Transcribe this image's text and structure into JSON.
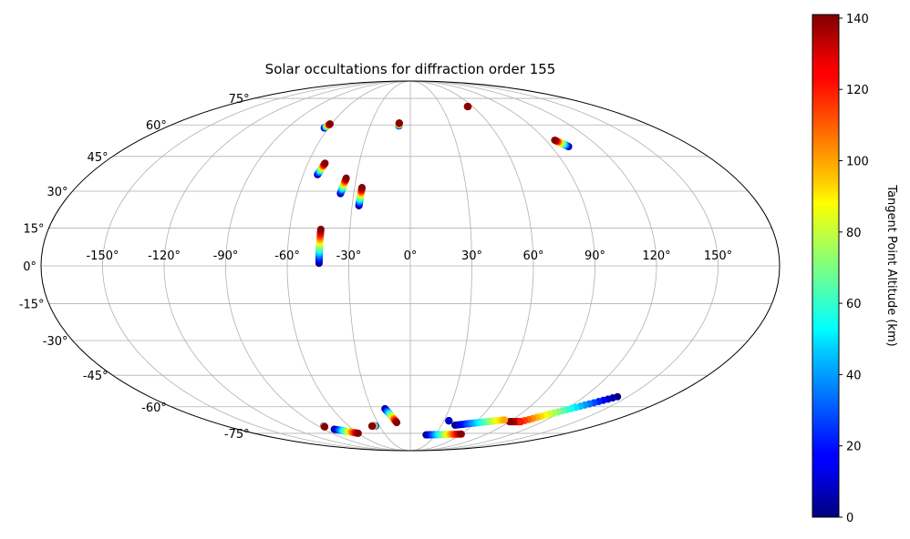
{
  "chart_data": {
    "type": "scatter",
    "projection": "mollweide",
    "title": "Solar occultations for diffraction order 155",
    "xlabel": "",
    "ylabel": "",
    "grid": true,
    "xlim": [
      -180,
      180
    ],
    "ylim": [
      -90,
      90
    ],
    "lon_ticks": [
      -150,
      -120,
      -90,
      -60,
      -30,
      0,
      30,
      60,
      90,
      120,
      150
    ],
    "lon_tick_labels": [
      "-150°",
      "-120°",
      "-90°",
      "-60°",
      "-30°",
      "0°",
      "30°",
      "60°",
      "90°",
      "120°",
      "150°"
    ],
    "lat_ticks": [
      75,
      60,
      45,
      30,
      15,
      0,
      -15,
      -30,
      -45,
      -60,
      -75
    ],
    "lat_tick_labels": [
      "75°",
      "60°",
      "45°",
      "30°",
      "15°",
      "0°",
      "-15°",
      "-30°",
      "-45°",
      "-60°",
      "-75°"
    ],
    "colorbar": {
      "label": "Tangent Point Altitude (km)",
      "colormap": "jet",
      "range": [
        0,
        141
      ],
      "ticks": [
        0,
        20,
        40,
        60,
        80,
        100,
        120,
        140
      ],
      "tick_labels": [
        "0",
        "20",
        "40",
        "60",
        "80",
        "100",
        "120",
        "140"
      ]
    },
    "tracks": [
      {
        "lon0": -44.5,
        "lat0": 1.0,
        "alt0": 0,
        "lon1": -44.5,
        "lat1": 14.5,
        "alt1": 140
      },
      {
        "lon0": -26.5,
        "lat0": 24.0,
        "alt0": 0,
        "lon1": -26.0,
        "lat1": 31.5,
        "alt1": 140
      },
      {
        "lon0": -37.0,
        "lat0": 29.0,
        "alt0": 0,
        "lon1": -35.5,
        "lat1": 35.5,
        "alt1": 140
      },
      {
        "lon0": -52.0,
        "lat0": 37.0,
        "alt0": 0,
        "lon1": -50.0,
        "lat1": 42.0,
        "alt1": 140
      },
      {
        "lon0": -63.0,
        "lat0": 58.5,
        "alt0": 0,
        "lon1": -61.0,
        "lat1": 60.5,
        "alt1": 140
      },
      {
        "lon0": -8.5,
        "lat0": 59.5,
        "alt0": 0,
        "lon1": -8.5,
        "lat1": 61.0,
        "alt1": 140
      },
      {
        "lon0": 55.5,
        "lat0": 70.0,
        "alt0": 120,
        "lon1": 55.0,
        "lat1": 70.0,
        "alt1": 140
      },
      {
        "lon0": 101.0,
        "lat0": 49.5,
        "alt0": 0,
        "lon1": 96.0,
        "lat1": 52.5,
        "alt1": 140
      },
      {
        "lon0": -19.5,
        "lat0": -61.0,
        "alt0": 0,
        "lon1": -12.5,
        "lat1": -68.5,
        "alt1": 140
      },
      {
        "lon0": -84.5,
        "lat0": -70.5,
        "alt0": 0,
        "lon1": -85.0,
        "lat1": -71.0,
        "alt1": 140
      },
      {
        "lon0": -79.5,
        "lat0": -72.5,
        "alt0": 0,
        "lon1": -60.0,
        "lat1": -75.0,
        "alt1": 140
      },
      {
        "lon0": -34.0,
        "lat0": -70.5,
        "alt0": 0,
        "lon1": -37.5,
        "lat1": -70.5,
        "alt1": 140
      },
      {
        "lon0": 19.0,
        "lat0": -76.0,
        "alt0": 0,
        "lon1": 60.0,
        "lat1": -75.5,
        "alt1": 140
      },
      {
        "lon0": 100.0,
        "lat0": -68.0,
        "alt0": 120,
        "lon1": 90.0,
        "lat1": -68.0,
        "alt1": 140
      },
      {
        "lon0": 143.0,
        "lat0": -55.0,
        "alt0": 0,
        "lon1": 100.0,
        "lat1": -68.0,
        "alt1": 120
      },
      {
        "lon0": 34.5,
        "lat0": -67.5,
        "alt0": 0,
        "lon1": 34.5,
        "lat1": -67.5,
        "alt1": 10
      },
      {
        "lon0": 43.0,
        "lat0": -70.0,
        "alt0": 0,
        "lon1": 83.0,
        "lat1": -67.0,
        "alt1": 100
      }
    ]
  }
}
